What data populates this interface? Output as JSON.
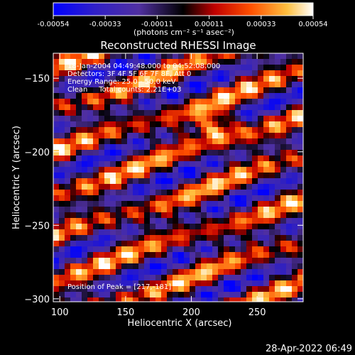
{
  "chart_data": {
    "type": "heatmap",
    "title": "Reconstructed RHESSI Image",
    "xlabel": "Heliocentric X (arcsec)",
    "ylabel": "Heliocentric Y (arcsec)",
    "xlim": [
      95,
      285
    ],
    "ylim": [
      -302,
      -133
    ],
    "xticks": [
      100,
      150,
      200,
      250
    ],
    "yticks": [
      -150,
      -200,
      -250,
      -300
    ],
    "colorbar": {
      "ticks": [
        "-0.00054",
        "-0.00033",
        "-0.00011",
        "0.00011",
        "0.00033",
        "0.00054"
      ],
      "range": [
        -0.00054,
        0.00054
      ],
      "units": "(photons cm⁻² s⁻¹ asec⁻²)"
    },
    "annotations": [
      "18-Jan-2004 04:49:48.000 to 04:52:08.000",
      "Detectors: 3F 4F 5F 6F 7F 8F, Att 0",
      "Energy Range: 25.0 - 50.0 keV",
      "Clean     Total counts: 2.21E+03"
    ],
    "peak_label": "Position of Peak = [217,-181]",
    "peak": [
      217,
      -181
    ],
    "colors": [
      "#0000ff",
      "#3020c0",
      "#5030a0",
      "#000000",
      "#c00000",
      "#ff5000",
      "#ffc040",
      "#ffffff"
    ]
  },
  "footer": {
    "date": "28-Apr-2022 06:49"
  }
}
